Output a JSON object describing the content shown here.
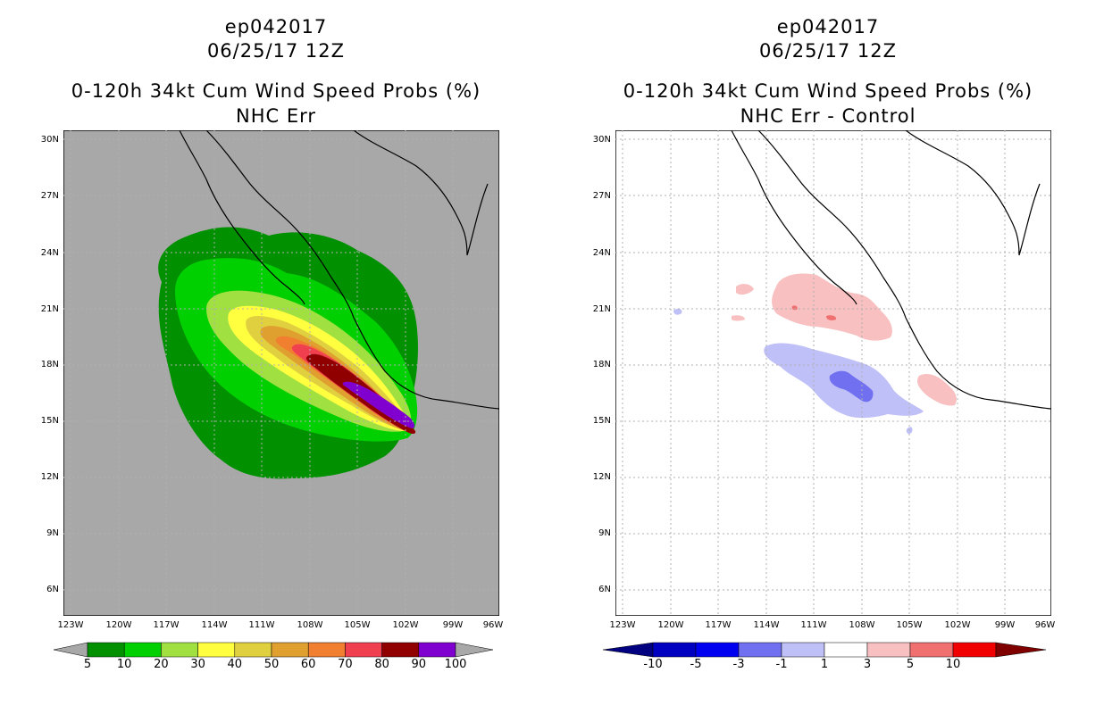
{
  "left_panel": {
    "title_line1": "ep042017",
    "title_line2": "06/25/17 12Z",
    "title_line3": "0-120h 34kt Cum Wind Speed Probs (%)",
    "title_line4": "NHC Err",
    "colorbar_labels": [
      "5",
      "10",
      "20",
      "30",
      "40",
      "50",
      "60",
      "70",
      "80",
      "90",
      "100"
    ],
    "colorbar_colors": [
      "#009000",
      "#00d000",
      "#a0e040",
      "#ffff40",
      "#e0d040",
      "#e0a030",
      "#f08030",
      "#f04050",
      "#900000",
      "#8000d0"
    ]
  },
  "right_panel": {
    "title_line1": "ep042017",
    "title_line2": "06/25/17 12Z",
    "title_line3": "0-120h 34kt Cum Wind Speed Probs (%)",
    "title_line4": "NHC Err - Control",
    "colorbar_labels": [
      "-10",
      "-5",
      "-3",
      "-1",
      "1",
      "3",
      "5",
      "10"
    ],
    "colorbar_colors": [
      "#0000c0",
      "#0000f0",
      "#7070f0",
      "#c0c0f8",
      "#ffffff",
      "#f8c0c0",
      "#f07070",
      "#f00000"
    ]
  },
  "axes": {
    "lat_labels": [
      "30N",
      "27N",
      "24N",
      "21N",
      "18N",
      "15N",
      "12N",
      "9N",
      "6N"
    ],
    "lon_labels": [
      "123W",
      "120W",
      "117W",
      "114W",
      "111W",
      "108W",
      "105W",
      "102W",
      "99W",
      "96W"
    ]
  },
  "colors": {
    "ocean_left": "#a8a8a8",
    "coast": "#000000",
    "grid": "#b0b0b0"
  }
}
